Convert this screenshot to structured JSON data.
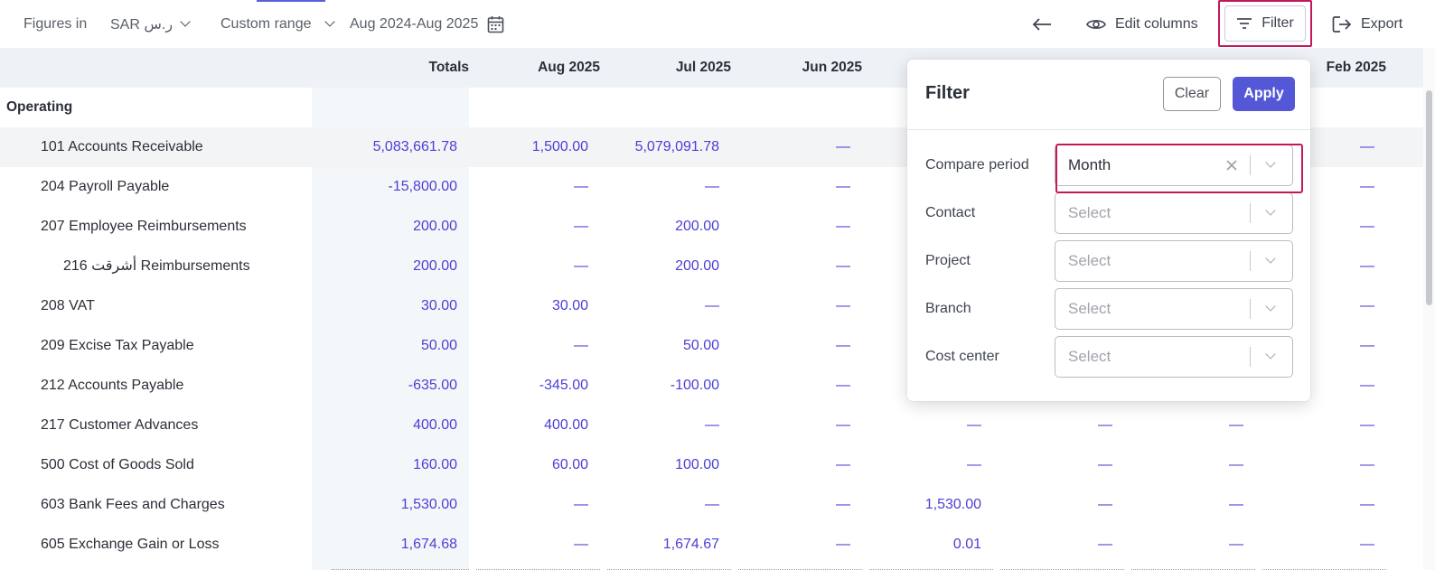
{
  "toolbar": {
    "figures_label": "Figures in",
    "currency": "SAR ر.س",
    "range_label": "Custom range",
    "date_range": "Aug 2024-Aug 2025",
    "edit_columns": "Edit columns",
    "filter": "Filter",
    "export": "Export"
  },
  "table": {
    "columns": [
      "Totals",
      "Aug 2025",
      "Jul 2025",
      "Jun 2025",
      "",
      "",
      "",
      "Feb 2025"
    ],
    "section": "Operating",
    "rows": [
      {
        "name": "101 Accounts Receivable",
        "values": [
          "5,083,661.78",
          "1,500.00",
          "5,079,091.78",
          "—",
          "",
          "",
          "",
          "—"
        ]
      },
      {
        "name": "204 Payroll Payable",
        "values": [
          "-15,800.00",
          "—",
          "—",
          "—",
          "",
          "",
          "",
          "—"
        ]
      },
      {
        "name": "207 Employee Reimbursements",
        "values": [
          "200.00",
          "—",
          "200.00",
          "—",
          "",
          "",
          "",
          "—"
        ]
      },
      {
        "name": "216 أشرقت Reimbursements",
        "values": [
          "200.00",
          "—",
          "200.00",
          "—",
          "",
          "",
          "",
          "—"
        ]
      },
      {
        "name": "208 VAT",
        "values": [
          "30.00",
          "30.00",
          "—",
          "—",
          "",
          "",
          "",
          "—"
        ]
      },
      {
        "name": "209 Excise Tax Payable",
        "values": [
          "50.00",
          "—",
          "50.00",
          "—",
          "",
          "",
          "",
          "—"
        ]
      },
      {
        "name": "212 Accounts Payable",
        "values": [
          "-635.00",
          "-345.00",
          "-100.00",
          "—",
          "",
          "",
          "",
          "—"
        ]
      },
      {
        "name": "217 Customer Advances",
        "values": [
          "400.00",
          "400.00",
          "—",
          "—",
          "—",
          "—",
          "—",
          "—"
        ]
      },
      {
        "name": "500 Cost of Goods Sold",
        "values": [
          "160.00",
          "60.00",
          "100.00",
          "—",
          "—",
          "—",
          "—",
          "—"
        ]
      },
      {
        "name": "603 Bank Fees and Charges",
        "values": [
          "1,530.00",
          "—",
          "—",
          "—",
          "1,530.00",
          "—",
          "—",
          "—"
        ]
      },
      {
        "name": "605 Exchange Gain or Loss",
        "values": [
          "1,674.68",
          "—",
          "1,674.67",
          "—",
          "0.01",
          "—",
          "—",
          "—"
        ]
      }
    ]
  },
  "filter_panel": {
    "title": "Filter",
    "clear": "Clear",
    "apply": "Apply",
    "fields": [
      {
        "label": "Compare period",
        "value": "Month",
        "placeholder": ""
      },
      {
        "label": "Contact",
        "value": "",
        "placeholder": "Select"
      },
      {
        "label": "Project",
        "value": "",
        "placeholder": "Select"
      },
      {
        "label": "Branch",
        "value": "",
        "placeholder": "Select"
      },
      {
        "label": "Cost center",
        "value": "",
        "placeholder": "Select"
      }
    ]
  }
}
